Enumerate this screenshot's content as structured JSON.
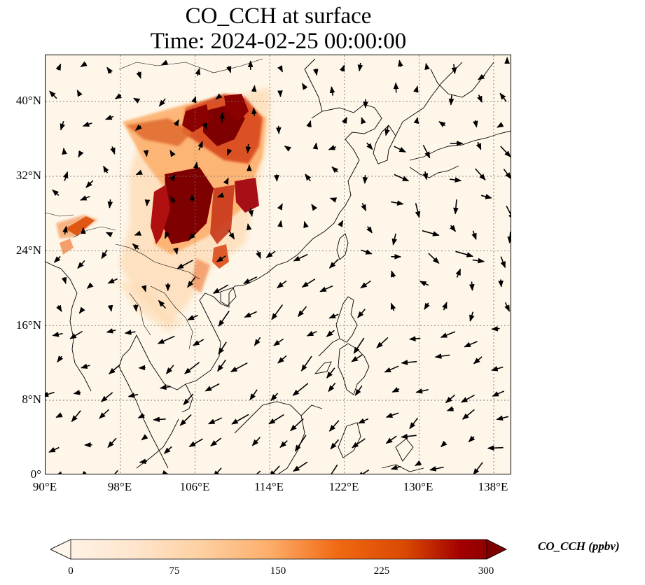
{
  "title": {
    "line1": "CO_CCH at surface",
    "line2": "Time: 2024-02-25 00:00:00"
  },
  "map": {
    "lon_range": [
      90,
      140
    ],
    "lat_range": [
      0,
      40
    ],
    "x_ticks": [
      "90°E",
      "98°E",
      "106°E",
      "114°E",
      "122°E",
      "130°E",
      "138°E"
    ],
    "y_ticks": [
      "0°",
      "8°N",
      "16°N",
      "24°N",
      "32°N",
      "40°N"
    ],
    "gridlines": true,
    "background_color": "#fef6e9",
    "coastline_color": "#000000"
  },
  "colorbar": {
    "label": "CO_CCH (ppbv)",
    "ticks": [
      "0",
      "75",
      "150",
      "225",
      "300"
    ],
    "range": [
      0,
      300
    ],
    "extend": "both",
    "colors": [
      "#fff5eb",
      "#fdd9b0",
      "#fdae6b",
      "#f16913",
      "#d94801",
      "#a30000",
      "#7f0000"
    ]
  }
}
